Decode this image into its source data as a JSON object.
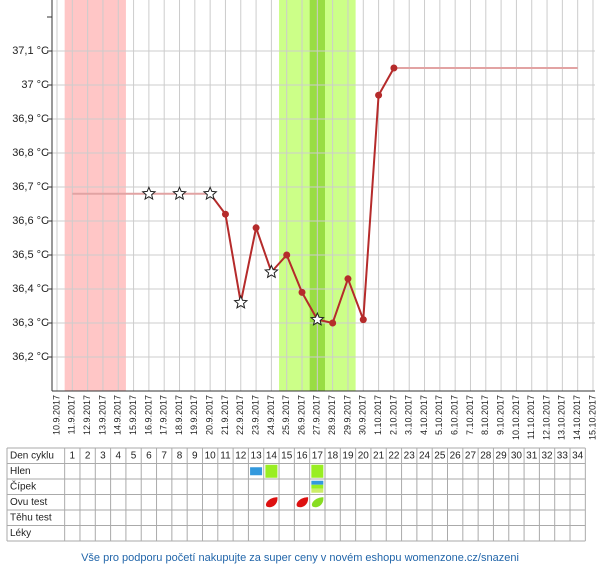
{
  "chart_data": {
    "type": "line",
    "categories": [
      "10.9.2017",
      "11.9.2017",
      "12.9.2017",
      "13.9.2017",
      "14.9.2017",
      "15.9.2017",
      "16.9.2017",
      "17.9.2017",
      "18.9.2017",
      "19.9.2017",
      "20.9.2017",
      "21.9.2017",
      "22.9.2017",
      "23.9.2017",
      "24.9.2017",
      "25.9.2017",
      "26.9.2017",
      "27.9.2017",
      "28.9.2017",
      "29.9.2017",
      "30.9.2017",
      "1.10.2017",
      "2.10.2017",
      "3.10.2017",
      "4.10.2017",
      "5.10.2017",
      "6.10.2017",
      "7.10.2017",
      "8.10.2017",
      "9.10.2017",
      "10.10.2017",
      "11.10.2017",
      "12.10.2017",
      "13.10.2017",
      "14.10.2017",
      "15.10.2017"
    ],
    "series": [
      {
        "color": "#b52b2b",
        "values": [
          null,
          null,
          null,
          null,
          null,
          null,
          36.68,
          null,
          36.68,
          null,
          36.68,
          36.62,
          36.36,
          36.58,
          36.45,
          36.5,
          36.39,
          36.31,
          36.3,
          36.43,
          36.31,
          36.97,
          37.05,
          null,
          null,
          null,
          null,
          null,
          null,
          null,
          null,
          null,
          null,
          null,
          null,
          null
        ],
        "markers": [
          null,
          null,
          null,
          null,
          null,
          null,
          "star",
          null,
          "star",
          null,
          "star",
          "circle",
          "star",
          "circle",
          "star",
          "circle",
          "circle",
          "star",
          "circle",
          "circle",
          "circle",
          "circle",
          "circle",
          null,
          null,
          null,
          null,
          null,
          null,
          null,
          null,
          null,
          null,
          null,
          null,
          null
        ]
      }
    ],
    "ylim": [
      36.1,
      37.2
    ],
    "yticks": [
      {
        "value": 37.1,
        "label": "37,1 °C"
      },
      {
        "value": 37,
        "label": "37 °C"
      },
      {
        "value": 36.9,
        "label": "36,9 °C"
      },
      {
        "value": 36.8,
        "label": "36,8 °C"
      },
      {
        "value": 36.7,
        "label": "36,7 °C"
      },
      {
        "value": 36.6,
        "label": "36,6 °C"
      },
      {
        "value": 36.5,
        "label": "36,5 °C"
      },
      {
        "value": 36.4,
        "label": "36,4 °C"
      },
      {
        "value": 36.3,
        "label": "36,3 °C"
      },
      {
        "value": 36.2,
        "label": "36,2 °C"
      }
    ],
    "grid": true,
    "coverlines": [
      {
        "x": [
          "11.9.2017",
          "20.9.2017"
        ],
        "value": 36.68,
        "color": "#e2a3a3"
      },
      {
        "x": [
          "2.10.2017",
          "14.10.2017"
        ],
        "value": 37.05,
        "color": "#e2a3a3"
      }
    ],
    "bands": [
      {
        "x": [
          "11.9.2017",
          "14.9.2017"
        ],
        "color": "#ffc6c6"
      },
      {
        "x": [
          "25.9.2017",
          "29.9.2017"
        ],
        "color": "#ccff88"
      },
      {
        "x": [
          "27.9.2017",
          "27.9.2017"
        ],
        "color": "#99dd44"
      }
    ]
  },
  "table": {
    "days": [
      1,
      2,
      3,
      4,
      5,
      6,
      7,
      8,
      9,
      10,
      11,
      12,
      13,
      14,
      15,
      16,
      17,
      18,
      19,
      20,
      21,
      22,
      23,
      24,
      25,
      26,
      27,
      28,
      29,
      30,
      31,
      32,
      33,
      34
    ],
    "rows": [
      {
        "label": "Den cyklu"
      },
      {
        "label": "Hlen",
        "icons": [
          {
            "day": 13,
            "kind": "bar",
            "colors": [
              "#3399dd"
            ]
          },
          {
            "day": 14,
            "kind": "square",
            "colors": [
              "#99ee22"
            ]
          },
          {
            "day": 17,
            "kind": "square",
            "colors": [
              "#99ee22"
            ]
          }
        ]
      },
      {
        "label": "Čípek",
        "icons": [
          {
            "day": 17,
            "kind": "stripes",
            "colors": [
              "#3399dd",
              "#99ee22",
              "#ccee66"
            ]
          }
        ]
      },
      {
        "label": "Ovu test",
        "icons": [
          {
            "day": 14,
            "kind": "drop",
            "colors": [
              "#dd1111"
            ]
          },
          {
            "day": 16,
            "kind": "drop",
            "colors": [
              "#dd1111"
            ]
          },
          {
            "day": 17,
            "kind": "drop",
            "colors": [
              "#88dd22"
            ]
          }
        ]
      },
      {
        "label": "Těhu test"
      },
      {
        "label": "Léky"
      }
    ]
  },
  "footer": "Vše pro podporu početí nakupujte za super ceny v novém eshopu womenzone.cz/snazeni"
}
